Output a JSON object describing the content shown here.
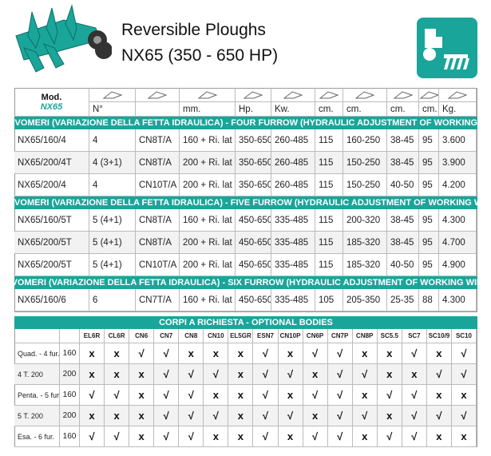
{
  "header": {
    "title": "Reversible Ploughs",
    "subtitle": "NX65 (350 - 650 HP)"
  },
  "table": {
    "model_label": "Mod.",
    "model_name": "NX65",
    "units": [
      "N°",
      "",
      "mm.",
      "Hp.",
      "Kw.",
      "cm.",
      "cm.",
      "cm.",
      "cm.",
      "Kg."
    ],
    "sections": [
      {
        "title": "QUADRIVOMERI (VARIAZIONE DELLA FETTA IDRAULICA) - FOUR FURROW (HYDRAULIC ADJUSTMENT OF WORKING WIDTH)",
        "rows": [
          [
            "NX65/160/4",
            "4",
            "CN8T/A",
            "160 + Ri. lat",
            "350-650",
            "260-485",
            "115",
            "160-250",
            "38-45",
            "95",
            "3.600"
          ],
          [
            "NX65/200/4T",
            "4 (3+1)",
            "CN8T/A",
            "200 + Ri. lat",
            "350-650",
            "260-485",
            "115",
            "150-250",
            "38-45",
            "95",
            "3.900"
          ],
          [
            "NX65/200/4",
            "4",
            "CN10T/A",
            "200 + Ri. lat",
            "350-650",
            "260-485",
            "115",
            "150-250",
            "40-50",
            "95",
            "4.200"
          ]
        ]
      },
      {
        "title": "PENTAVOMERI (VARIAZIONE DELLA FETTA IDRAULICA) - FIVE FURROW (HYDRAULIC ADJUSTMENT OF WORKING WIDTH)",
        "rows": [
          [
            "NX65/160/5T",
            "5 (4+1)",
            "CN8T/A",
            "160 + Ri. lat",
            "450-650",
            "335-485",
            "115",
            "200-320",
            "38-45",
            "95",
            "4.300"
          ],
          [
            "NX65/200/5T",
            "5 (4+1)",
            "CN8T/A",
            "200 + Ri. lat",
            "450-650",
            "335-485",
            "115",
            "185-320",
            "38-45",
            "95",
            "4.700"
          ],
          [
            "NX65/200/5T",
            "5 (4+1)",
            "CN10T/A",
            "200 + Ri. lat",
            "450-650",
            "335-485",
            "115",
            "185-320",
            "40-50",
            "95",
            "4.900"
          ]
        ]
      },
      {
        "title": "ESAVOMERI (VARIAZIONE DELLA FETTA IDRAULICA) - SIX FURROW (HYDRAULIC ADJUSTMENT OF WORKING WIDTH)",
        "rows": [
          [
            "NX65/160/6",
            "6",
            "CN7T/A",
            "160 + Ri. lat",
            "450-650",
            "335-485",
            "105",
            "205-350",
            "25-35",
            "88",
            "4.300"
          ]
        ]
      }
    ]
  },
  "options": {
    "title": "CORPI A RICHIESTA - OPTIONAL BODIES",
    "columns": [
      "EL6R",
      "CL6R",
      "CN6",
      "CN7",
      "CN8",
      "CN10",
      "EL5GR",
      "ESN7",
      "CN10P",
      "CN6P",
      "CN7P",
      "CN8P",
      "SC5.5",
      "SC7",
      "SC10/9",
      "SC10"
    ],
    "rows": [
      {
        "label": "Quad. - 4 fur.",
        "size": "160",
        "marks": [
          "x",
          "x",
          "√",
          "√",
          "x",
          "x",
          "x",
          "√",
          "x",
          "√",
          "√",
          "x",
          "x",
          "√",
          "x",
          "√"
        ]
      },
      {
        "label": "4 T. 200",
        "size": "200",
        "marks": [
          "x",
          "x",
          "x",
          "√",
          "√",
          "√",
          "x",
          "√",
          "√",
          "x",
          "√",
          "√",
          "x",
          "x",
          "√",
          "√"
        ]
      },
      {
        "label": "Penta. - 5 fur.",
        "size": "160",
        "marks": [
          "√",
          "√",
          "x",
          "√",
          "√",
          "x",
          "x",
          "√",
          "x",
          "√",
          "√",
          "x",
          "√",
          "√",
          "x",
          "x"
        ]
      },
      {
        "label": "5 T. 200",
        "size": "200",
        "marks": [
          "x",
          "x",
          "x",
          "√",
          "√",
          "√",
          "x",
          "√",
          "√",
          "x",
          "√",
          "√",
          "x",
          "√",
          "√",
          "√"
        ]
      },
      {
        "label": "Esa. - 6 fur.",
        "size": "160",
        "marks": [
          "√",
          "√",
          "x",
          "√",
          "√",
          "x",
          "x",
          "√",
          "x",
          "√",
          "√",
          "x",
          "√",
          "√",
          "x",
          "x"
        ]
      }
    ]
  }
}
